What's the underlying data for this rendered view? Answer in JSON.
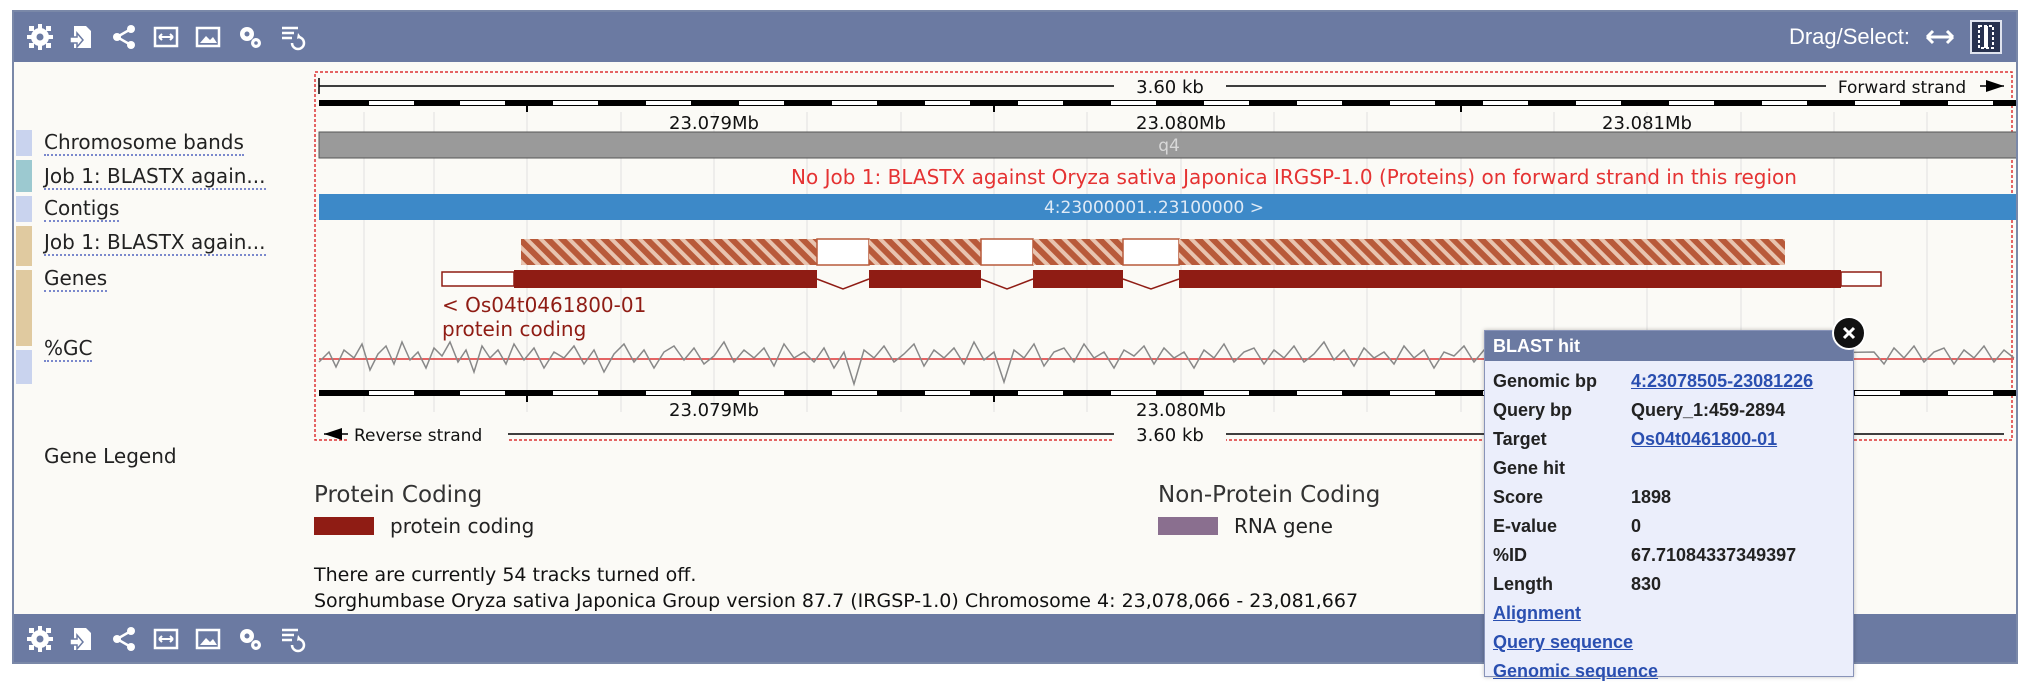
{
  "toolbar": {
    "icons": [
      "gear-icon",
      "export-icon",
      "share-icon",
      "resize-icon",
      "image-icon",
      "settings-icon",
      "refresh-icon"
    ],
    "drag_select_label": "Drag/Select:"
  },
  "ruler": {
    "top_length": "3.60 kb",
    "forward_label": "Forward strand",
    "reverse_label": "Reverse strand",
    "bottom_length": "3.60 kb",
    "ticks": [
      "23.079Mb",
      "23.080Mb",
      "23.081Mb"
    ]
  },
  "tracks": {
    "chromosome_bands": "Chromosome bands",
    "job1_forward": "Job 1: BLASTX again...",
    "contigs": "Contigs",
    "job1_reverse": "Job 1: BLASTX again...",
    "genes": "Genes",
    "gc": "%GC"
  },
  "band_label": "q4",
  "no_hit_message": "No Job 1: BLASTX against Oryza sativa Japonica IRGSP-1.0 (Proteins) on forward strand in this region",
  "contig_label": "4:23000001..23100000 >",
  "gene": {
    "name": "< Os04t0461800-01",
    "biotype": "protein coding"
  },
  "legend": {
    "title": "Gene Legend",
    "protein_heading": "Protein Coding",
    "protein_item": "protein coding",
    "protein_color": "#8f1c14",
    "nonprotein_heading": "Non-Protein Coding",
    "nonprotein_item": "RNA gene",
    "nonprotein_color": "#8a6f8f"
  },
  "info": {
    "tracks_off": "There are currently 54 tracks turned off.",
    "location": "Sorghumbase Oryza sativa Japonica Group version 87.7 (IRGSP-1.0) Chromosome 4: 23,078,066 - 23,081,667"
  },
  "popup": {
    "title": "BLAST hit",
    "rows": [
      {
        "label": "Genomic bp",
        "value": "4:23078505-23081226"
      },
      {
        "label": "Query bp",
        "value": "Query_1:459-2894"
      },
      {
        "label": "Target",
        "value": "Os04t0461800-01"
      },
      {
        "label": "Gene hit",
        "value": ""
      },
      {
        "label": "Score",
        "value": "1898"
      },
      {
        "label": "E-value",
        "value": "0"
      },
      {
        "label": "%ID",
        "value": "67.71084337349397"
      },
      {
        "label": "Length",
        "value": "830"
      }
    ],
    "links": [
      "Alignment",
      "Query sequence",
      "Genomic sequence"
    ]
  }
}
